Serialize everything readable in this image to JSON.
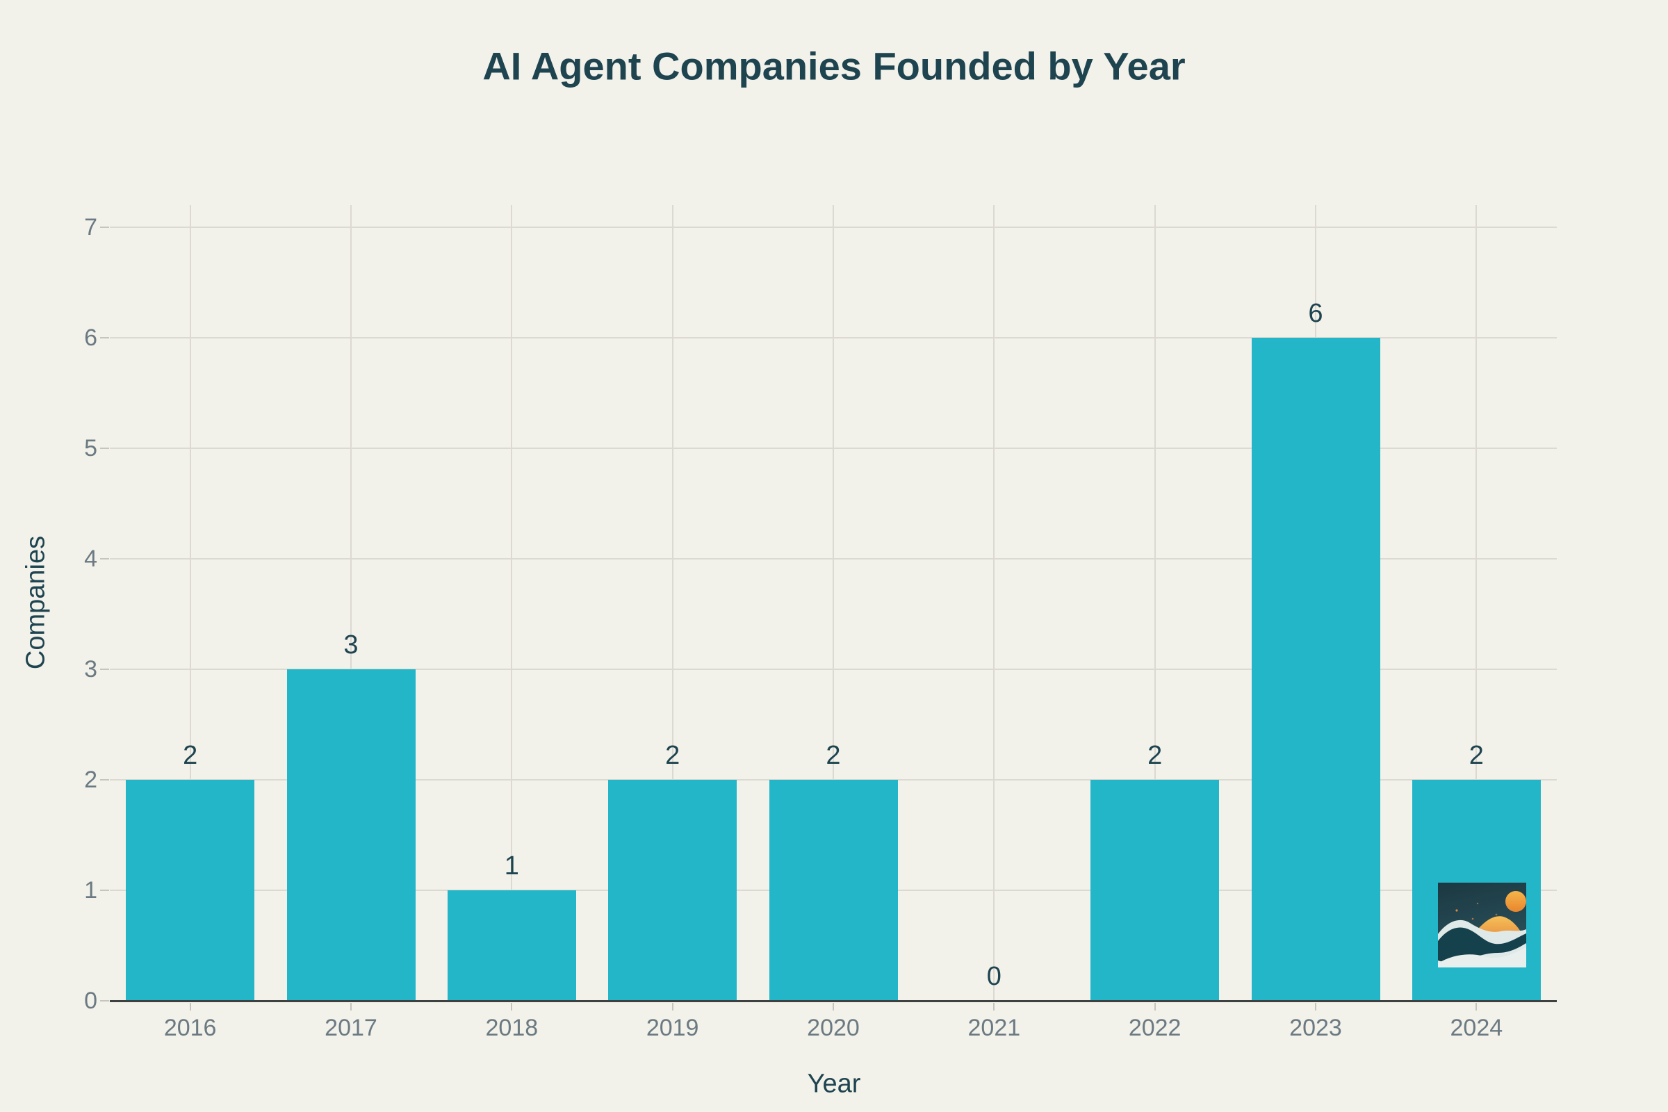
{
  "chart_data": {
    "type": "bar",
    "title": "AI Agent Companies Founded by Year",
    "xlabel": "Year",
    "ylabel": "Companies",
    "categories": [
      "2016",
      "2017",
      "2018",
      "2019",
      "2020",
      "2021",
      "2022",
      "2023",
      "2024"
    ],
    "values": [
      2,
      3,
      1,
      2,
      2,
      0,
      2,
      6,
      2
    ],
    "value_labels": [
      "2",
      "3",
      "1",
      "2",
      "2",
      "0",
      "2",
      "6",
      "2"
    ],
    "yticks": [
      0,
      1,
      2,
      3,
      4,
      5,
      6,
      7
    ],
    "ylim": [
      0,
      7.2
    ],
    "grid": true,
    "legend_position": "none"
  },
  "colors": {
    "background": "#f2f1ea",
    "bar": "#23b6c9",
    "grid_line": "#dbd9d1",
    "axis_line": "#3d4140",
    "tick_mark": "#c6c4bd",
    "tick_label": "#6b7a82",
    "heading_text": "#1e4450"
  },
  "watermark": {
    "sky_top": "#1b3842",
    "sky_bottom": "#2c545e",
    "sun_top": "#f6b54a",
    "sun_bottom": "#e8862e",
    "mountain_top": "#f6c159",
    "mountain_bottom": "#dc6a2b",
    "wave_dark": "#15414d",
    "wave_light": "#dfe9e7",
    "wave_front": "#e9efed",
    "star": "#e99140"
  }
}
